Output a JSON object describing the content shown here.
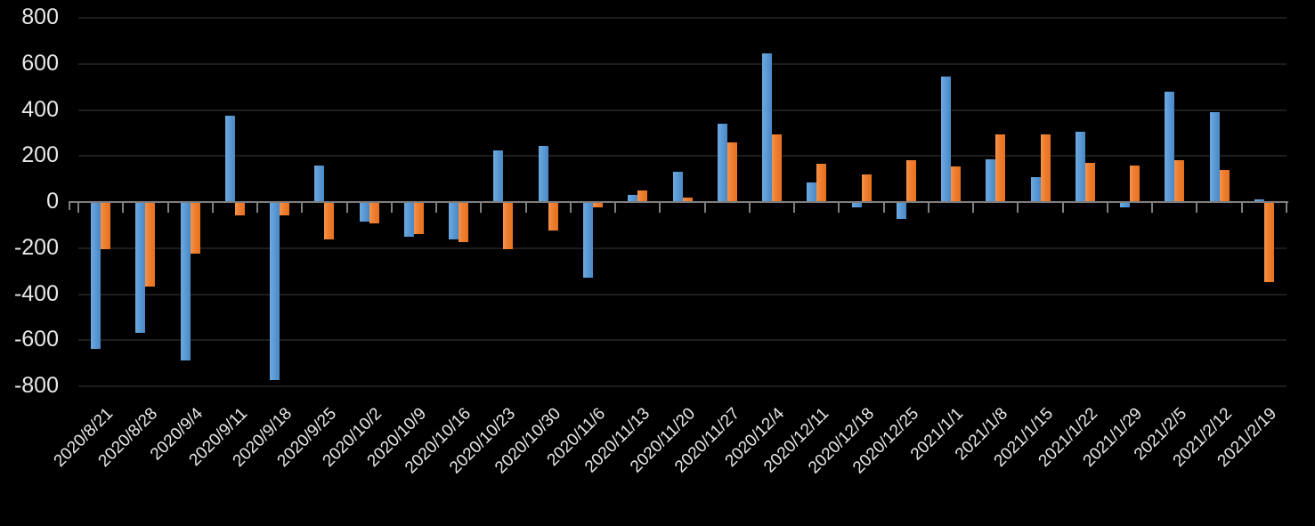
{
  "chart_data": {
    "type": "bar",
    "title": "",
    "xlabel": "",
    "ylabel": "",
    "categories": [
      "2020/8/21",
      "2020/8/28",
      "2020/9/4",
      "2020/9/11",
      "2020/9/18",
      "2020/9/25",
      "2020/10/2",
      "2020/10/9",
      "2020/10/16",
      "2020/10/23",
      "2020/10/30",
      "2020/11/6",
      "2020/11/13",
      "2020/11/20",
      "2020/11/27",
      "2020/12/4",
      "2020/12/11",
      "2020/12/18",
      "2020/12/25",
      "2021/1/1",
      "2021/1/8",
      "2021/1/15",
      "2021/1/22",
      "2021/1/29",
      "2021/2/5",
      "2021/2/12",
      "2021/2/19"
    ],
    "series": [
      {
        "name": "blue-series",
        "color": "#5B9BD5",
        "values": [
          -635,
          -565,
          -685,
          375,
          -770,
          160,
          -80,
          -145,
          -160,
          225,
          245,
          -325,
          30,
          130,
          340,
          645,
          85,
          -20,
          -70,
          545,
          185,
          110,
          305,
          -20,
          480,
          390,
          10
        ]
      },
      {
        "name": "orange-series",
        "color": "#ED7D31",
        "values": [
          -200,
          -365,
          -220,
          -55,
          -55,
          -160,
          -90,
          -135,
          -170,
          -200,
          -120,
          -20,
          50,
          20,
          260,
          295,
          165,
          120,
          180,
          155,
          295,
          295,
          170,
          160,
          180,
          140,
          -345
        ]
      }
    ],
    "ylim": [
      -800,
      800
    ],
    "ytick_step": 200,
    "yticks": [
      800,
      600,
      400,
      200,
      0,
      -200,
      -400,
      -600,
      -800
    ],
    "grid": true,
    "legend": "none",
    "colors": {
      "background": "#000000",
      "gridline": "#1d1d1d",
      "axis": "#7f7f7f",
      "labels": "#e8e8e8"
    }
  }
}
